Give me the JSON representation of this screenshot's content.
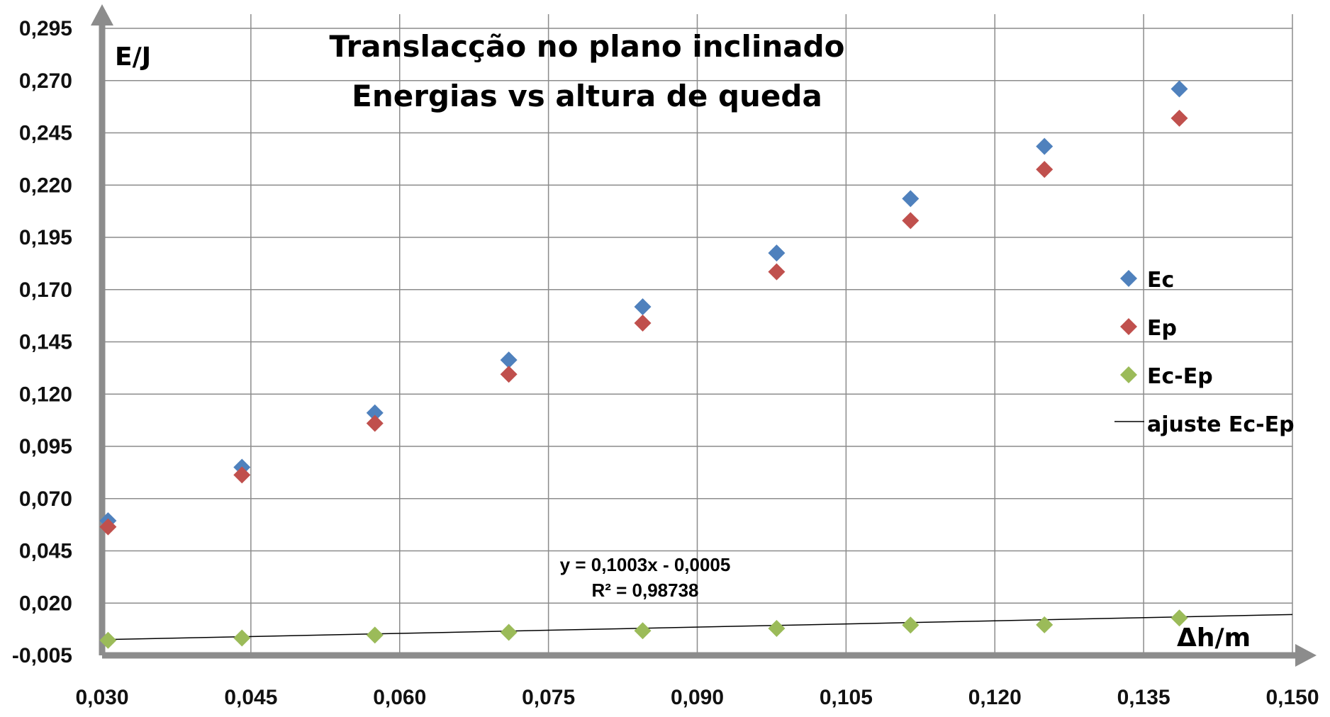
{
  "chart_data": {
    "type": "scatter",
    "title": [
      "Translacção no plano inclinado",
      "Energias vs altura de queda"
    ],
    "xlabel": "Δh/m",
    "ylabel": "E/J",
    "xlim": [
      0.03,
      0.15
    ],
    "ylim": [
      -0.005,
      0.295
    ],
    "x_ticks": [
      "0,030",
      "0,045",
      "0,060",
      "0,075",
      "0,090",
      "0,105",
      "0,120",
      "0,135",
      "0,150"
    ],
    "y_ticks": [
      "0,295",
      "0,270",
      "0,245",
      "0,220",
      "0,195",
      "0,170",
      "0,145",
      "0,120",
      "0,095",
      "0,070",
      "0,045",
      "0,020",
      "-0,005"
    ],
    "x": [
      0.0306,
      0.0441,
      0.0575,
      0.071,
      0.0845,
      0.098,
      0.1115,
      0.125,
      0.1386
    ],
    "series": [
      {
        "name": "Ec",
        "color": "#4f81bd",
        "marker": "diamond",
        "values": [
          0.0594,
          0.085,
          0.111,
          0.1363,
          0.1618,
          0.1875,
          0.2135,
          0.2385,
          0.266
        ]
      },
      {
        "name": "Ep",
        "color": "#c0504d",
        "marker": "diamond",
        "values": [
          0.0565,
          0.0813,
          0.106,
          0.1295,
          0.154,
          0.1785,
          0.203,
          0.2275,
          0.252
        ]
      },
      {
        "name": "Ec-Ep",
        "color": "#9bbb59",
        "marker": "diamond",
        "values": [
          0.0022,
          0.0033,
          0.0047,
          0.006,
          0.0068,
          0.0079,
          0.0095,
          0.0096,
          0.0129
        ]
      }
    ],
    "trendline": {
      "name": "ajuste Ec-Ep",
      "color": "#000000",
      "slope": 0.1003,
      "intercept": -0.0005,
      "equation": "y = 0,1003x - 0,0005",
      "r2": "R² = 0,98738"
    },
    "grid": true,
    "legend": "right"
  }
}
